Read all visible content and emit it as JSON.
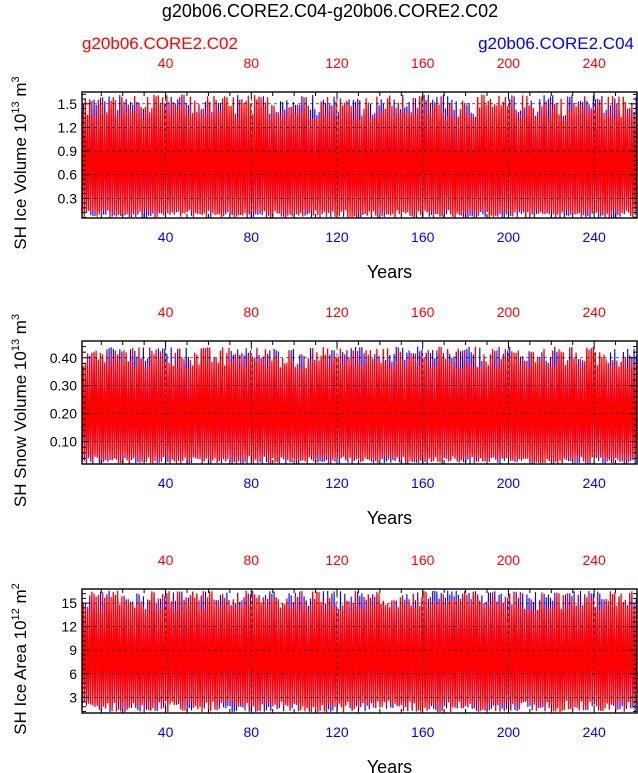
{
  "title": "g20b06.CORE2.C04-g20b06.CORE2.C02",
  "legend": {
    "left": {
      "label": "g20b06.CORE2.C02",
      "color": "#ff0000"
    },
    "right": {
      "label": "g20b06.CORE2.C04",
      "color": "#0000ff"
    }
  },
  "colors": {
    "series_a": "#ff0000",
    "series_b": "#0000ff",
    "axis": "#000000",
    "grid": "#000000"
  },
  "chart_data": [
    {
      "type": "line",
      "ylabel": "SH Ice Volume 10",
      "ylabel_exp": "13",
      "ylabel_unit": " m",
      "ylabel_unit_exp": "3",
      "xlabel": "Years",
      "xlim": [
        1,
        260
      ],
      "ylim": [
        0.05,
        1.65
      ],
      "yticks": [
        0.3,
        0.6,
        0.9,
        1.2,
        1.5
      ],
      "ytick_labels": [
        "0.3",
        "0.6",
        "0.9",
        "1.2",
        "1.5"
      ],
      "xticks": [
        40,
        80,
        120,
        160,
        200,
        240
      ],
      "xtick_labels": [
        "40",
        "80",
        "120",
        "160",
        "200",
        "240"
      ],
      "grid": true,
      "seasonal_range": {
        "min": [
          0.05,
          0.16
        ],
        "max": [
          1.3,
          1.62
        ]
      },
      "series": [
        {
          "name": "g20b06.CORE2.C02",
          "color": "#ff0000"
        },
        {
          "name": "g20b06.CORE2.C04",
          "color": "#0000ff"
        }
      ]
    },
    {
      "type": "line",
      "ylabel": "SH Snow Volume 10",
      "ylabel_exp": "13",
      "ylabel_unit": " m",
      "ylabel_unit_exp": "3",
      "xlabel": "Years",
      "xlim": [
        1,
        260
      ],
      "ylim": [
        0.02,
        0.46
      ],
      "yticks": [
        0.1,
        0.2,
        0.3,
        0.4
      ],
      "ytick_labels": [
        "0.10",
        "0.20",
        "0.30",
        "0.40"
      ],
      "xticks": [
        40,
        80,
        120,
        160,
        200,
        240
      ],
      "xtick_labels": [
        "40",
        "80",
        "120",
        "160",
        "200",
        "240"
      ],
      "grid": true,
      "seasonal_range": {
        "min": [
          0.02,
          0.05
        ],
        "max": [
          0.36,
          0.44
        ]
      },
      "series": [
        {
          "name": "g20b06.CORE2.C02",
          "color": "#ff0000"
        },
        {
          "name": "g20b06.CORE2.C04",
          "color": "#0000ff"
        }
      ]
    },
    {
      "type": "line",
      "ylabel": "SH Ice Area 10",
      "ylabel_exp": "12",
      "ylabel_unit": " m",
      "ylabel_unit_exp": "2",
      "xlabel": "Years",
      "xlim": [
        1,
        260
      ],
      "ylim": [
        1.0,
        16.8
      ],
      "yticks": [
        3,
        6,
        9,
        12,
        15
      ],
      "ytick_labels": [
        "3",
        "6",
        "9",
        "12",
        "15"
      ],
      "xticks": [
        40,
        80,
        120,
        160,
        200,
        240
      ],
      "xtick_labels": [
        "40",
        "80",
        "120",
        "160",
        "200",
        "240"
      ],
      "grid": true,
      "seasonal_range": {
        "min": [
          1.1,
          2.6
        ],
        "max": [
          14.0,
          16.6
        ]
      },
      "series": [
        {
          "name": "g20b06.CORE2.C02",
          "color": "#ff0000"
        },
        {
          "name": "g20b06.CORE2.C04",
          "color": "#0000ff"
        }
      ]
    }
  ]
}
